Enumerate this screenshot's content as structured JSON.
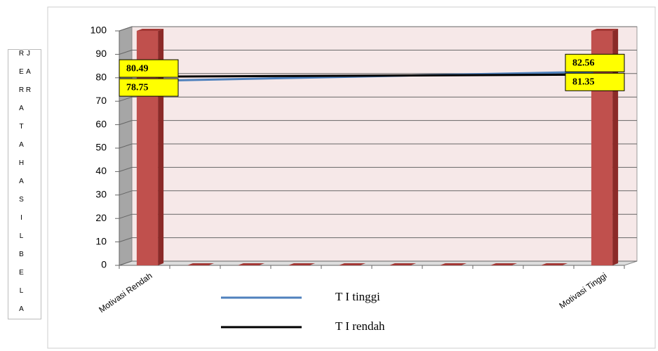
{
  "chart_data": {
    "type": "bar",
    "y_label": "R E R A T A   H A S I L   B E L A J A R",
    "categories": [
      "Motivasi Rendah",
      null,
      null,
      null,
      null,
      null,
      null,
      null,
      null,
      "Motivasi Tinggi"
    ],
    "values": [
      100,
      0,
      0,
      0,
      0,
      0,
      0,
      0,
      0,
      100
    ],
    "color": "#c0504d",
    "ylim": [
      0,
      100
    ],
    "yticks": [
      0,
      10,
      20,
      30,
      40,
      50,
      60,
      70,
      80,
      90,
      100
    ],
    "grid": true,
    "lines": [
      {
        "name": "T I tinggi",
        "color": "#4f81bd",
        "values": [
          78.75,
          82.56
        ]
      },
      {
        "name": "T I rendah",
        "color": "#000000",
        "values": [
          80.49,
          81.35
        ]
      }
    ]
  }
}
